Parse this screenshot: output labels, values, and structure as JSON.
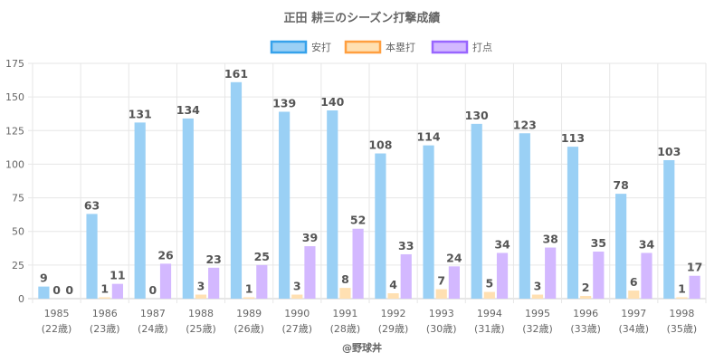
{
  "chart_data": {
    "type": "bar",
    "title": "正田 耕三のシーズン打撃成績",
    "categories": [
      [
        "1985",
        "(22歳)"
      ],
      [
        "1986",
        "(23歳)"
      ],
      [
        "1987",
        "(24歳)"
      ],
      [
        "1988",
        "(25歳)"
      ],
      [
        "1989",
        "(26歳)"
      ],
      [
        "1990",
        "(27歳)"
      ],
      [
        "1991",
        "(28歳)"
      ],
      [
        "1992",
        "(29歳)"
      ],
      [
        "1993",
        "(30歳)"
      ],
      [
        "1994",
        "(31歳)"
      ],
      [
        "1995",
        "(32歳)"
      ],
      [
        "1996",
        "(33歳)"
      ],
      [
        "1997",
        "(34歳)"
      ],
      [
        "1998",
        "(35歳)"
      ]
    ],
    "series": [
      {
        "name": "安打",
        "color": "#9ad0f5",
        "border": "#36a2eb",
        "values": [
          9,
          63,
          131,
          134,
          161,
          139,
          140,
          108,
          114,
          130,
          123,
          113,
          78,
          103
        ]
      },
      {
        "name": "本塁打",
        "color": "#ffe0b2",
        "border": "#ff9f40",
        "values": [
          0,
          1,
          0,
          3,
          1,
          3,
          8,
          4,
          7,
          5,
          3,
          2,
          6,
          1
        ]
      },
      {
        "name": "打点",
        "color": "#d3b8ff",
        "border": "#9966ff",
        "values": [
          0,
          11,
          26,
          23,
          25,
          39,
          52,
          33,
          24,
          34,
          38,
          35,
          34,
          17
        ]
      }
    ],
    "ylim": [
      0,
      175
    ],
    "yticks": [
      0,
      25,
      50,
      75,
      100,
      125,
      150,
      175
    ],
    "grid": true,
    "legend_position": "top"
  },
  "watermark": "@野球丼"
}
